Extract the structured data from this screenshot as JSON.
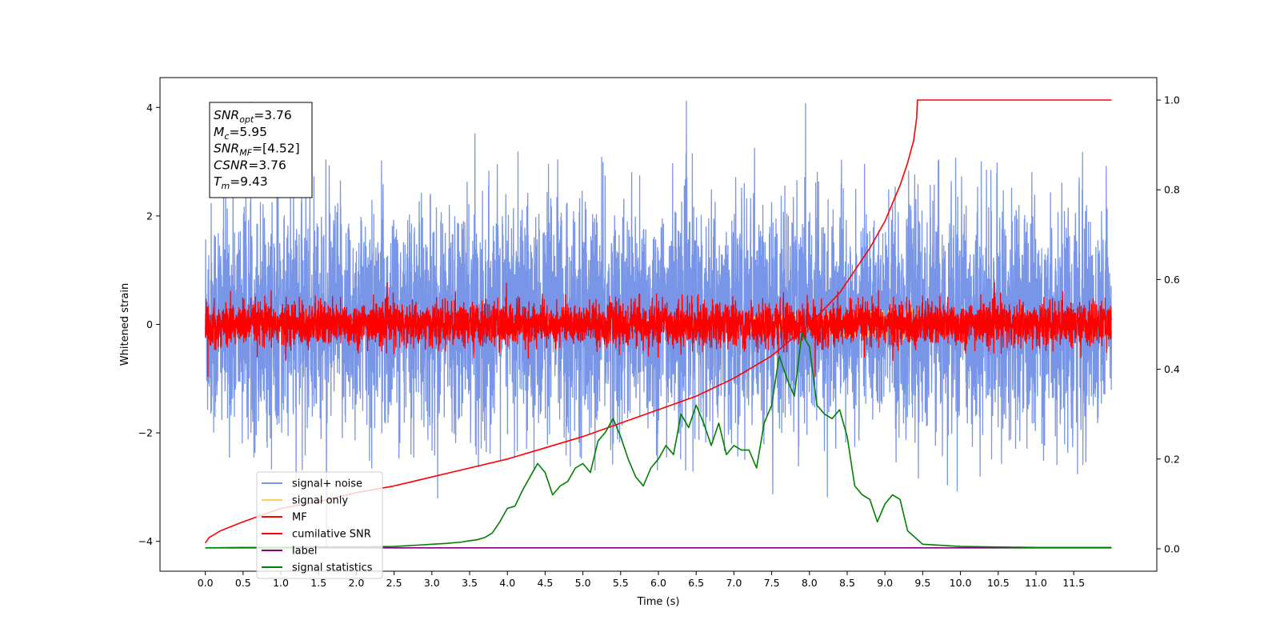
{
  "chart_data": {
    "type": "line",
    "title": "",
    "xlabel": "Time (s)",
    "ylabel": "Whitened strain",
    "y2label": "",
    "xlim": [
      -0.6,
      12.6
    ],
    "ylim": [
      -4.55,
      4.55
    ],
    "y2lim": [
      -0.05,
      1.05
    ],
    "x_ticks": [
      "0.0",
      "0.5",
      "1.0",
      "1.5",
      "2.0",
      "2.5",
      "3.0",
      "3.5",
      "4.0",
      "4.5",
      "5.0",
      "5.5",
      "6.0",
      "6.5",
      "7.0",
      "7.5",
      "8.0",
      "8.5",
      "9.0",
      "9.5",
      "10.0",
      "10.5",
      "11.0",
      "11.5"
    ],
    "y_ticks": [
      "4",
      "2",
      "0",
      "−2",
      "−4"
    ],
    "y2_ticks": [
      "1.0",
      "0.8",
      "0.6",
      "0.4",
      "0.2",
      "0.0"
    ],
    "grid": false,
    "legend_position": "lower-left",
    "annotation": {
      "lines": [
        {
          "sym": "SNR",
          "sub": "opt",
          "val": "=3.76"
        },
        {
          "sym": "M",
          "sub": "c",
          "val": "=5.95"
        },
        {
          "sym": "SNR",
          "sub": "MF",
          "val": "=[4.52]"
        },
        {
          "sym": "CSNR",
          "sub": "",
          "val": "=3.76"
        },
        {
          "sym": "T",
          "sub": "m",
          "val": "=9.43"
        }
      ]
    },
    "series": [
      {
        "name": "signal+ noise",
        "color": "#7895e8",
        "axis": "left",
        "kind": "noise",
        "x_range": [
          0,
          12
        ],
        "sigma": 1.05,
        "mean": 0.1
      },
      {
        "name": "signal only",
        "color": "#ffc966",
        "axis": "left",
        "kind": "chirp",
        "x_range": [
          0,
          9.43
        ]
      },
      {
        "name": "MF",
        "color": "#ff0000",
        "axis": "left",
        "kind": "noise",
        "x_range": [
          0,
          12
        ],
        "sigma": 0.2,
        "mean": 0.0
      },
      {
        "name": "cumilative SNR",
        "color": "#ff0000",
        "axis": "right",
        "kind": "line",
        "x": [
          0,
          0.05,
          0.2,
          0.5,
          1.0,
          1.5,
          2.0,
          2.5,
          3.0,
          3.5,
          4.0,
          4.5,
          5.0,
          5.5,
          6.0,
          6.5,
          7.0,
          7.5,
          8.0,
          8.4,
          8.8,
          9.0,
          9.2,
          9.3,
          9.38,
          9.42,
          9.43,
          12.0
        ],
        "y": [
          0.013,
          0.025,
          0.04,
          0.06,
          0.09,
          0.105,
          0.125,
          0.14,
          0.16,
          0.18,
          0.2,
          0.225,
          0.25,
          0.28,
          0.31,
          0.34,
          0.38,
          0.43,
          0.5,
          0.57,
          0.67,
          0.73,
          0.81,
          0.86,
          0.91,
          0.96,
          1.0,
          1.0
        ]
      },
      {
        "name": "label",
        "color": "#800080",
        "axis": "right",
        "kind": "line",
        "x": [
          0,
          12
        ],
        "y": [
          0.002,
          0.002
        ]
      },
      {
        "name": "signal statistics",
        "color": "#008000",
        "axis": "right",
        "kind": "line",
        "x": [
          0,
          0.5,
          1.0,
          1.5,
          2.0,
          2.5,
          2.8,
          3.0,
          3.2,
          3.4,
          3.5,
          3.6,
          3.7,
          3.8,
          3.9,
          4.0,
          4.1,
          4.2,
          4.3,
          4.4,
          4.5,
          4.6,
          4.7,
          4.8,
          4.9,
          5.0,
          5.1,
          5.2,
          5.3,
          5.4,
          5.5,
          5.6,
          5.7,
          5.8,
          5.9,
          6.0,
          6.1,
          6.2,
          6.3,
          6.4,
          6.5,
          6.6,
          6.7,
          6.8,
          6.9,
          7.0,
          7.1,
          7.2,
          7.3,
          7.4,
          7.5,
          7.6,
          7.7,
          7.8,
          7.9,
          8.0,
          8.1,
          8.2,
          8.3,
          8.4,
          8.5,
          8.6,
          8.7,
          8.8,
          8.9,
          9.0,
          9.1,
          9.2,
          9.3,
          9.5,
          10.0,
          11.0,
          11.5,
          12.0
        ],
        "y": [
          0.002,
          0.003,
          0.003,
          0.004,
          0.004,
          0.005,
          0.008,
          0.01,
          0.012,
          0.015,
          0.018,
          0.02,
          0.025,
          0.035,
          0.06,
          0.09,
          0.095,
          0.13,
          0.16,
          0.19,
          0.17,
          0.12,
          0.14,
          0.15,
          0.18,
          0.19,
          0.17,
          0.24,
          0.26,
          0.29,
          0.25,
          0.2,
          0.16,
          0.14,
          0.18,
          0.2,
          0.23,
          0.21,
          0.3,
          0.27,
          0.32,
          0.28,
          0.23,
          0.28,
          0.21,
          0.23,
          0.22,
          0.22,
          0.18,
          0.28,
          0.32,
          0.43,
          0.38,
          0.34,
          0.48,
          0.45,
          0.32,
          0.3,
          0.29,
          0.31,
          0.25,
          0.14,
          0.12,
          0.11,
          0.06,
          0.1,
          0.12,
          0.11,
          0.04,
          0.01,
          0.005,
          0.003,
          0.003,
          0.003
        ]
      }
    ]
  }
}
